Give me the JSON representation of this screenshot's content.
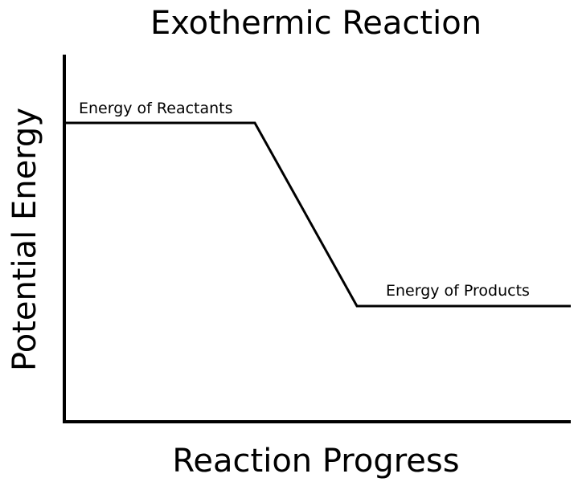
{
  "title": "Exothermic Reaction",
  "y_axis_label": "Potential Energy",
  "x_axis_label": "Reaction Progress",
  "annotations": [
    "Energy of Reactants",
    "Energy of Products"
  ]
}
